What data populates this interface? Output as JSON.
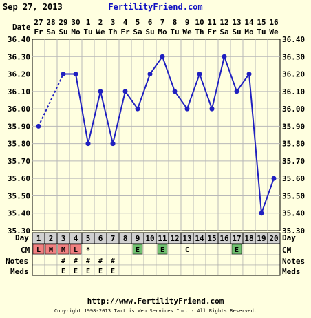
{
  "header": {
    "date": "Sep 27, 2013",
    "site": "FertilityFriend.com"
  },
  "footer": {
    "url": "http://www.FertilityFriend.com",
    "copyright": "Copyright 1998-2013 Tamtris Web Services Inc. - All Rights Reserved."
  },
  "row_labels": {
    "date": "Date",
    "day": "Day",
    "cm": "CM",
    "notes": "Notes",
    "meds": "Meds"
  },
  "colors": {
    "background": "#ffffe0",
    "line": "#2020c0",
    "grid": "#b8b8b8",
    "period": "#f08080",
    "egg_white": "#70c070",
    "day_row": "#d0d0d0"
  },
  "chart_data": {
    "type": "line",
    "x_date_labels": [
      "27",
      "28",
      "29",
      "30",
      "1",
      "2",
      "3",
      "4",
      "5",
      "6",
      "7",
      "8",
      "9",
      "10",
      "11",
      "12",
      "13",
      "14",
      "15",
      "16"
    ],
    "x_weekday_labels": [
      "Fr",
      "Sa",
      "Su",
      "Mo",
      "Tu",
      "We",
      "Th",
      "Fr",
      "Sa",
      "Su",
      "Mo",
      "Tu",
      "We",
      "Th",
      "Fr",
      "Sa",
      "Su",
      "Mo",
      "Tu",
      "We"
    ],
    "x_cycle_days": [
      "1",
      "2",
      "3",
      "4",
      "5",
      "6",
      "7",
      "8",
      "9",
      "10",
      "11",
      "12",
      "13",
      "14",
      "15",
      "16",
      "17",
      "18",
      "19",
      "20"
    ],
    "ylim": [
      35.3,
      36.4
    ],
    "y_ticks": [
      "36.40",
      "36.30",
      "36.20",
      "36.10",
      "36.00",
      "35.90",
      "35.80",
      "35.70",
      "35.60",
      "35.50",
      "35.40",
      "35.30"
    ],
    "series": [
      {
        "values": [
          35.9,
          null,
          36.2,
          36.2,
          35.8,
          36.1,
          35.8,
          36.1,
          36.0,
          36.2,
          36.3,
          36.1,
          36.0,
          36.2,
          36.0,
          36.3,
          36.1,
          36.2,
          35.4,
          35.6
        ]
      }
    ],
    "dotted_connections": [
      [
        1,
        3
      ]
    ],
    "grid": true
  },
  "cm_row": [
    "L",
    "M",
    "M",
    "L",
    "*",
    "",
    "",
    "",
    "E",
    "",
    "E",
    "",
    "C",
    "",
    "",
    "",
    "E",
    "",
    "",
    ""
  ],
  "notes_row": [
    "",
    "",
    "#",
    "#",
    "#",
    "#",
    "#",
    "",
    "",
    "",
    "",
    "",
    "",
    "",
    "",
    "",
    "",
    "",
    "",
    ""
  ],
  "meds_row": [
    "",
    "",
    "E",
    "E",
    "E",
    "E",
    "E",
    "",
    "",
    "",
    "",
    "",
    "",
    "",
    "",
    "",
    "",
    "",
    "",
    ""
  ]
}
